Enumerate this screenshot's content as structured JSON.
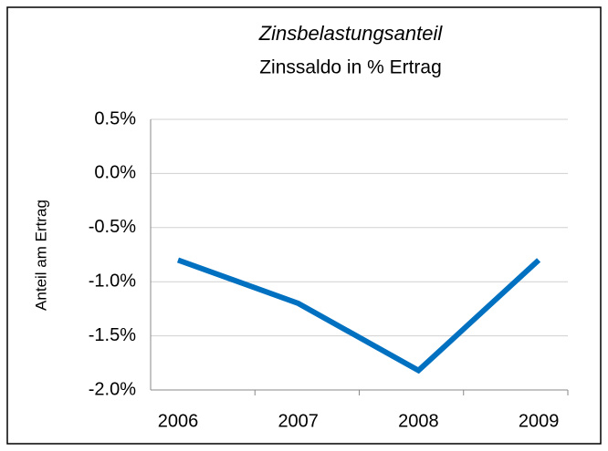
{
  "chart_data": {
    "type": "line",
    "title": "Zinsbelastungsanteil",
    "subtitle": "Zinssaldo in % Ertrag",
    "y_label": "Anteil am Ertrag",
    "categories": [
      "2006",
      "2007",
      "2008",
      "2009"
    ],
    "series": [
      {
        "name": "Zinsbelastungsanteil",
        "color": "#0070c0",
        "values": [
          -0.8,
          -1.2,
          -1.82,
          -0.8
        ]
      }
    ],
    "ylim": [
      -2.0,
      0.5
    ],
    "yticks": [
      {
        "value": 0.5,
        "label": "0.5%"
      },
      {
        "value": 0.0,
        "label": "0.0%"
      },
      {
        "value": -0.5,
        "label": "-0.5%"
      },
      {
        "value": -1.0,
        "label": "-1.0%"
      },
      {
        "value": -1.5,
        "label": "-1.5%"
      },
      {
        "value": -2.0,
        "label": "-2.0%"
      }
    ],
    "grid": true
  }
}
